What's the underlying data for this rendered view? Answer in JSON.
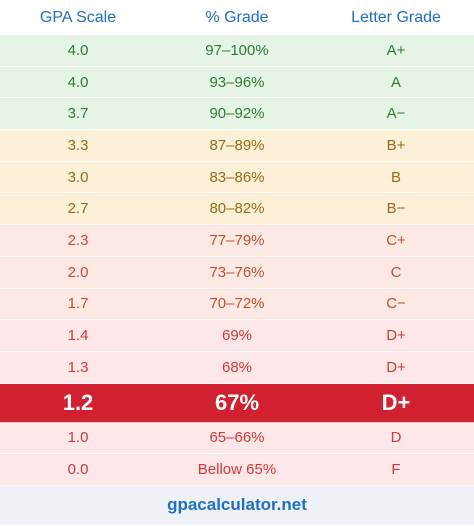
{
  "header": [
    "GPA Scale",
    "% Grade",
    "Letter Grade"
  ],
  "table": {
    "rows": [
      [
        "4.0",
        "97–100%",
        "A+"
      ],
      [
        "4.0",
        "93–96%",
        "A"
      ],
      [
        "3.7",
        "90–92%",
        "A−"
      ],
      [
        "3.3",
        "87–89%",
        "B+"
      ],
      [
        "3.0",
        "83–86%",
        "B"
      ],
      [
        "2.7",
        "80–82%",
        "B−"
      ],
      [
        "2.3",
        "77–79%",
        "C+"
      ],
      [
        "2.0",
        "73–76%",
        "C"
      ],
      [
        "1.7",
        "70–72%",
        "C−"
      ],
      [
        "1.4",
        "69%",
        "D+"
      ],
      [
        "1.3",
        "68%",
        "D+"
      ],
      [
        "1.2",
        "67%",
        "D+"
      ],
      [
        "1.0",
        "65–66%",
        "D"
      ],
      [
        "0.0",
        "Bellow 65%",
        "F"
      ]
    ]
  },
  "footer": "gpacalculator.net"
}
